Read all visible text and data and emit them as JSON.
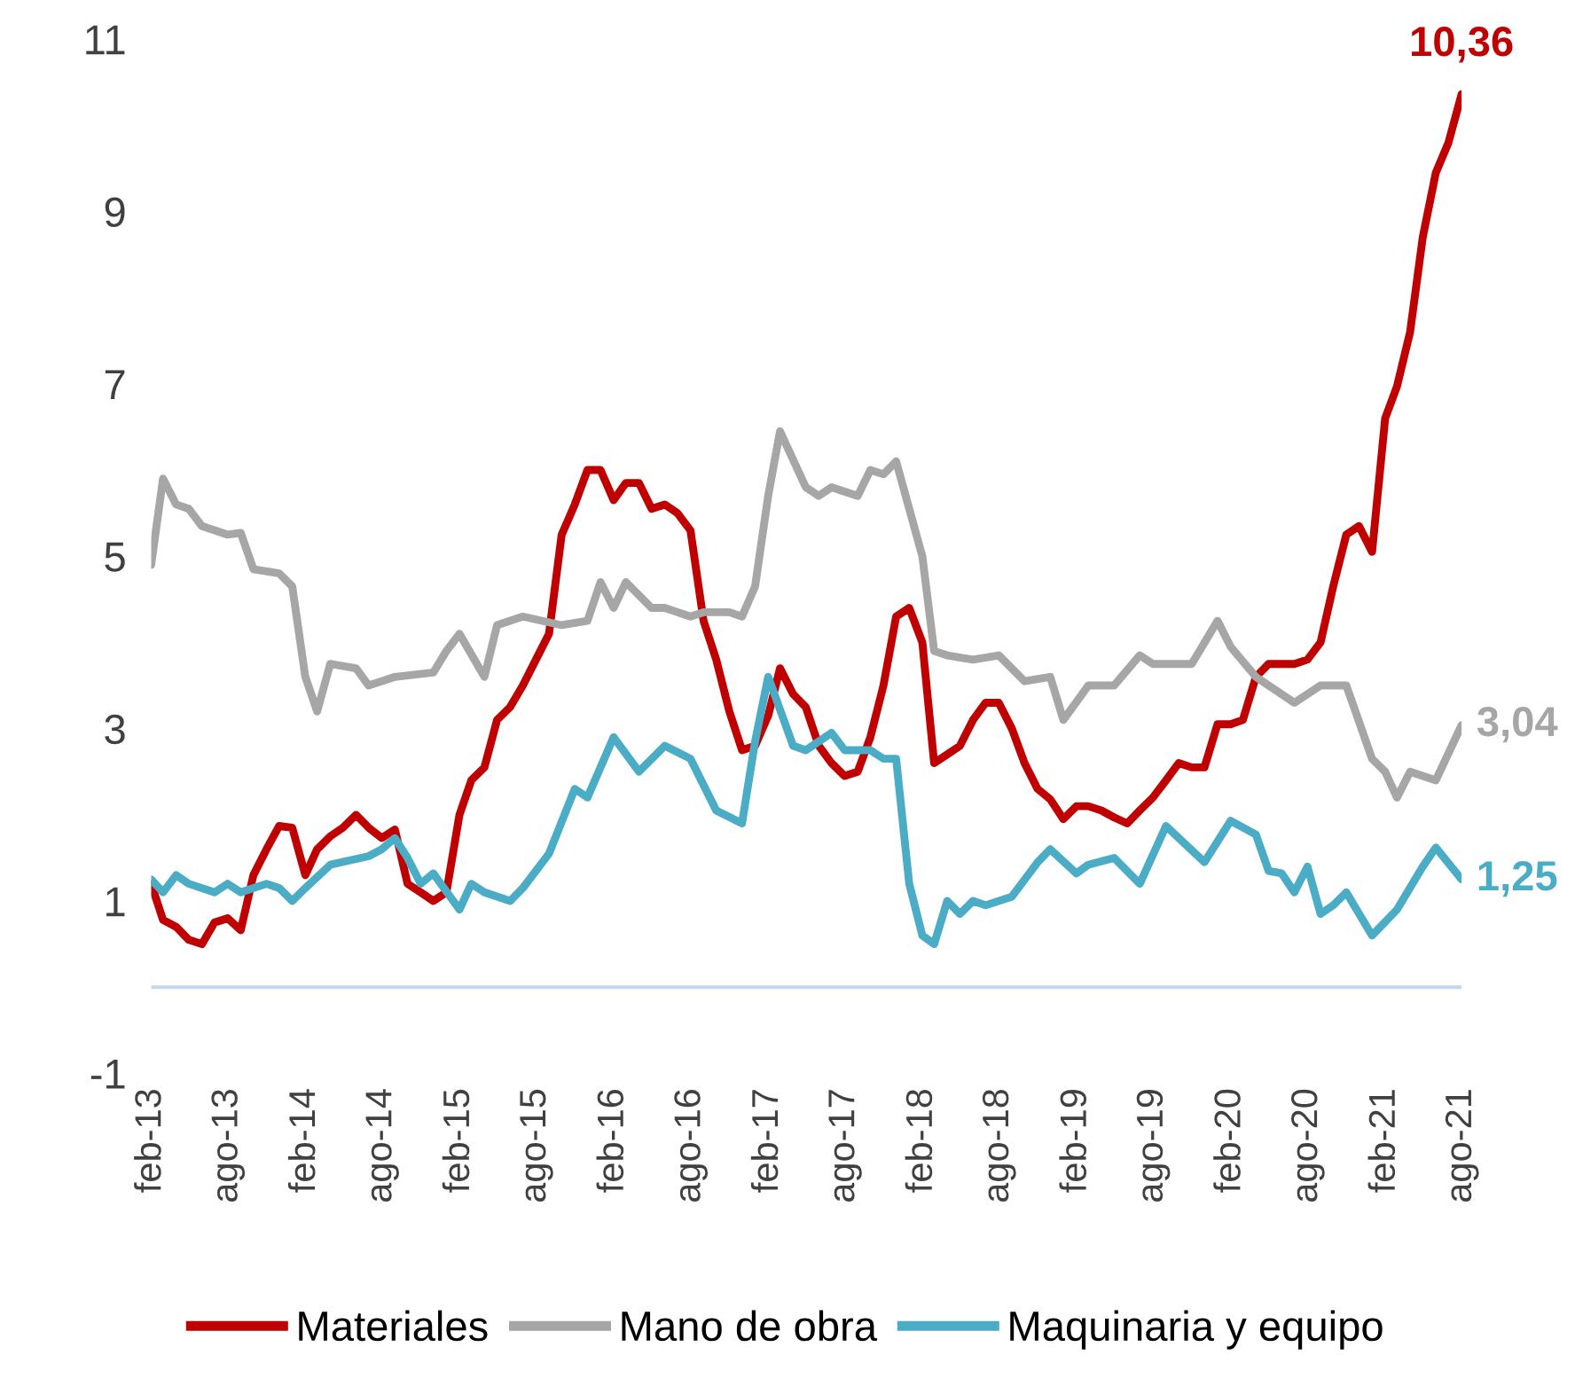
{
  "chart_data": {
    "type": "line",
    "x": [
      "2013-02",
      "2013-03",
      "2013-04",
      "2013-05",
      "2013-06",
      "2013-07",
      "2013-08",
      "2013-09",
      "2013-10",
      "2013-11",
      "2013-12",
      "2014-01",
      "2014-02",
      "2014-03",
      "2014-04",
      "2014-05",
      "2014-06",
      "2014-07",
      "2014-08",
      "2014-09",
      "2014-10",
      "2014-11",
      "2014-12",
      "2015-01",
      "2015-02",
      "2015-03",
      "2015-04",
      "2015-05",
      "2015-06",
      "2015-07",
      "2015-08",
      "2015-09",
      "2015-10",
      "2015-11",
      "2015-12",
      "2016-01",
      "2016-02",
      "2016-03",
      "2016-04",
      "2016-05",
      "2016-06",
      "2016-07",
      "2016-08",
      "2016-09",
      "2016-10",
      "2016-11",
      "2016-12",
      "2017-01",
      "2017-02",
      "2017-03",
      "2017-04",
      "2017-05",
      "2017-06",
      "2017-07",
      "2017-08",
      "2017-09",
      "2017-10",
      "2017-11",
      "2017-12",
      "2018-01",
      "2018-02",
      "2018-03",
      "2018-04",
      "2018-05",
      "2018-06",
      "2018-07",
      "2018-08",
      "2018-09",
      "2018-10",
      "2018-11",
      "2018-12",
      "2019-01",
      "2019-02",
      "2019-03",
      "2019-04",
      "2019-05",
      "2019-06",
      "2019-07",
      "2019-08",
      "2019-09",
      "2019-10",
      "2019-11",
      "2019-12",
      "2020-01",
      "2020-02",
      "2020-03",
      "2020-04",
      "2020-05",
      "2020-06",
      "2020-07",
      "2020-08",
      "2020-09",
      "2020-10",
      "2020-11",
      "2020-12",
      "2021-01",
      "2021-02",
      "2021-03",
      "2021-04",
      "2021-05",
      "2021-06",
      "2021-07",
      "2021-08"
    ],
    "series": [
      {
        "name": "Materiales",
        "color": "#c00000",
        "values": [
          1.2,
          0.78,
          0.7,
          0.55,
          0.5,
          0.75,
          0.8,
          0.66,
          1.3,
          1.6,
          1.87,
          1.85,
          1.3,
          1.6,
          1.75,
          1.85,
          2.0,
          1.85,
          1.73,
          1.83,
          1.2,
          1.1,
          1.0,
          1.1,
          2.0,
          2.4,
          2.55,
          3.1,
          3.25,
          3.5,
          3.8,
          4.1,
          5.25,
          5.6,
          6.0,
          6.0,
          5.65,
          5.85,
          5.85,
          5.55,
          5.6,
          5.5,
          5.3,
          4.25,
          3.8,
          3.2,
          2.75,
          2.8,
          3.15,
          3.7,
          3.4,
          3.25,
          2.8,
          2.6,
          2.45,
          2.5,
          2.9,
          3.5,
          4.3,
          4.4,
          4.0,
          2.6,
          2.7,
          2.8,
          3.1,
          3.3,
          3.3,
          3.0,
          2.6,
          2.3,
          2.18,
          1.95,
          2.1,
          2.1,
          2.05,
          1.97,
          1.9,
          2.05,
          2.2,
          2.4,
          2.6,
          2.55,
          2.55,
          3.05,
          3.05,
          3.1,
          3.6,
          3.75,
          3.75,
          3.75,
          3.8,
          4.0,
          4.65,
          5.25,
          5.35,
          5.05,
          6.6,
          6.97,
          7.6,
          8.7,
          9.45,
          9.8,
          10.36
        ],
        "value_labels": [
          null,
          null,
          null,
          null,
          null,
          null,
          null,
          null,
          null,
          null,
          null,
          null,
          null,
          null,
          null,
          null,
          null,
          null,
          null,
          null,
          null,
          null,
          null,
          null,
          null,
          null,
          null,
          null,
          null,
          null,
          null,
          null,
          null,
          null,
          null,
          null,
          null,
          null,
          null,
          null,
          null,
          null,
          null,
          null,
          null,
          null,
          null,
          null,
          null,
          null,
          null,
          null,
          null,
          null,
          null,
          null,
          null,
          null,
          null,
          null,
          null,
          null,
          null,
          null,
          null,
          null,
          null,
          null,
          null,
          null,
          null,
          null,
          null,
          null,
          null,
          null,
          null,
          null,
          null,
          null,
          null,
          null,
          null,
          null,
          null,
          null,
          null,
          null,
          null,
          null,
          null,
          null,
          null,
          null,
          null,
          null,
          null,
          null,
          null,
          null,
          null,
          null,
          "10,36"
        ]
      },
      {
        "name": "Mano de obra",
        "color": "#a6a6a6",
        "x": [
          "2013-02",
          "2013-03",
          "2013-04",
          "2013-05",
          "2013-06",
          "2013-08",
          "2013-09",
          "2013-10",
          "2013-12",
          "2014-01",
          "2014-02",
          "2014-03",
          "2014-04",
          "2014-06",
          "2014-07",
          "2014-09",
          "2014-12",
          "2015-01",
          "2015-02",
          "2015-04",
          "2015-05",
          "2015-07",
          "2015-10",
          "2015-12",
          "2016-01",
          "2016-02",
          "2016-03",
          "2016-05",
          "2016-06",
          "2016-08",
          "2016-09",
          "2016-11",
          "2016-12",
          "2017-01",
          "2017-02",
          "2017-03",
          "2017-05",
          "2017-06",
          "2017-07",
          "2017-09",
          "2017-10",
          "2017-11",
          "2017-12",
          "2018-02",
          "2018-03",
          "2018-04",
          "2018-06",
          "2018-08",
          "2018-10",
          "2018-12",
          "2019-01",
          "2019-03",
          "2019-05",
          "2019-07",
          "2019-08",
          "2019-11",
          "2020-01",
          "2020-02",
          "2020-04",
          "2020-05",
          "2020-07",
          "2020-09",
          "2020-11",
          "2021-01",
          "2021-02",
          "2021-03",
          "2021-04",
          "2021-06",
          "2021-08"
        ],
        "values": [
          4.9,
          5.9,
          5.6,
          5.55,
          5.35,
          5.25,
          5.27,
          4.85,
          4.8,
          4.65,
          3.6,
          3.2,
          3.75,
          3.7,
          3.5,
          3.6,
          3.65,
          3.9,
          4.1,
          3.6,
          4.2,
          4.3,
          4.2,
          4.25,
          4.7,
          4.4,
          4.7,
          4.4,
          4.4,
          4.3,
          4.35,
          4.35,
          4.3,
          4.65,
          5.7,
          6.45,
          5.8,
          5.7,
          5.8,
          5.7,
          6.0,
          5.95,
          6.1,
          5.0,
          3.9,
          3.85,
          3.8,
          3.85,
          3.55,
          3.6,
          3.1,
          3.5,
          3.5,
          3.85,
          3.75,
          3.75,
          4.25,
          3.95,
          3.6,
          3.5,
          3.3,
          3.5,
          3.5,
          2.65,
          2.5,
          2.2,
          2.5,
          2.4,
          3.04
        ],
        "value_labels": [
          null,
          null,
          null,
          null,
          null,
          null,
          null,
          null,
          null,
          null,
          null,
          null,
          null,
          null,
          null,
          null,
          null,
          null,
          null,
          null,
          null,
          null,
          null,
          null,
          null,
          null,
          null,
          null,
          null,
          null,
          null,
          null,
          null,
          null,
          null,
          null,
          null,
          null,
          null,
          null,
          null,
          null,
          null,
          null,
          null,
          null,
          null,
          null,
          null,
          null,
          null,
          null,
          null,
          null,
          null,
          null,
          null,
          null,
          null,
          null,
          null,
          null,
          null,
          null,
          null,
          null,
          null,
          null,
          "3,04"
        ]
      },
      {
        "name": "Maquinaria y equipo",
        "color": "#4bacc6",
        "x": [
          "2013-02",
          "2013-03",
          "2013-04",
          "2013-05",
          "2013-07",
          "2013-08",
          "2013-09",
          "2013-11",
          "2013-12",
          "2014-01",
          "2014-02",
          "2014-04",
          "2014-07",
          "2014-08",
          "2014-09",
          "2014-10",
          "2014-11",
          "2014-12",
          "2015-02",
          "2015-03",
          "2015-04",
          "2015-06",
          "2015-07",
          "2015-09",
          "2015-11",
          "2015-12",
          "2016-02",
          "2016-04",
          "2016-06",
          "2016-08",
          "2016-10",
          "2016-12",
          "2017-01",
          "2017-02",
          "2017-04",
          "2017-05",
          "2017-07",
          "2017-08",
          "2017-10",
          "2017-11",
          "2017-12",
          "2018-01",
          "2018-02",
          "2018-03",
          "2018-04",
          "2018-05",
          "2018-06",
          "2018-07",
          "2018-09",
          "2018-11",
          "2018-12",
          "2019-02",
          "2019-03",
          "2019-05",
          "2019-07",
          "2019-09",
          "2019-12",
          "2020-02",
          "2020-04",
          "2020-05",
          "2020-06",
          "2020-07",
          "2020-08",
          "2020-09",
          "2020-10",
          "2020-11",
          "2021-01",
          "2021-03",
          "2021-05",
          "2021-06",
          "2021-08"
        ],
        "values": [
          1.25,
          1.1,
          1.3,
          1.2,
          1.1,
          1.2,
          1.1,
          1.2,
          1.15,
          1.0,
          1.15,
          1.42,
          1.52,
          1.6,
          1.73,
          1.5,
          1.2,
          1.32,
          0.9,
          1.2,
          1.1,
          1.0,
          1.15,
          1.55,
          2.3,
          2.2,
          2.9,
          2.5,
          2.8,
          2.65,
          2.05,
          1.9,
          2.85,
          3.6,
          2.8,
          2.75,
          2.95,
          2.75,
          2.75,
          2.65,
          2.65,
          1.2,
          0.6,
          0.5,
          1.0,
          0.85,
          1.0,
          0.95,
          1.05,
          1.45,
          1.6,
          1.32,
          1.42,
          1.5,
          1.2,
          1.87,
          1.45,
          1.93,
          1.77,
          1.35,
          1.32,
          1.1,
          1.4,
          0.85,
          0.95,
          1.1,
          0.6,
          0.9,
          1.4,
          1.62,
          1.25
        ],
        "value_labels": [
          null,
          null,
          null,
          null,
          null,
          null,
          null,
          null,
          null,
          null,
          null,
          null,
          null,
          null,
          null,
          null,
          null,
          null,
          null,
          null,
          null,
          null,
          null,
          null,
          null,
          null,
          null,
          null,
          null,
          null,
          null,
          null,
          null,
          null,
          null,
          null,
          null,
          null,
          null,
          null,
          null,
          null,
          null,
          null,
          null,
          null,
          null,
          null,
          null,
          null,
          null,
          null,
          null,
          null,
          null,
          null,
          null,
          null,
          null,
          null,
          null,
          null,
          null,
          null,
          null,
          null,
          null,
          null,
          null,
          null,
          "1,25"
        ]
      }
    ],
    "xlim": [
      "2013-02",
      "2021-08"
    ],
    "xticks": [
      {
        "value": "2013-02",
        "label": "feb-13"
      },
      {
        "value": "2013-08",
        "label": "ago-13"
      },
      {
        "value": "2014-02",
        "label": "feb-14"
      },
      {
        "value": "2014-08",
        "label": "ago-14"
      },
      {
        "value": "2015-02",
        "label": "feb-15"
      },
      {
        "value": "2015-08",
        "label": "ago-15"
      },
      {
        "value": "2016-02",
        "label": "feb-16"
      },
      {
        "value": "2016-08",
        "label": "ago-16"
      },
      {
        "value": "2017-02",
        "label": "feb-17"
      },
      {
        "value": "2017-08",
        "label": "ago-17"
      },
      {
        "value": "2018-02",
        "label": "feb-18"
      },
      {
        "value": "2018-08",
        "label": "ago-18"
      },
      {
        "value": "2019-02",
        "label": "feb-19"
      },
      {
        "value": "2019-08",
        "label": "ago-19"
      },
      {
        "value": "2020-02",
        "label": "feb-20"
      },
      {
        "value": "2020-08",
        "label": "ago-20"
      },
      {
        "value": "2021-02",
        "label": "feb-21"
      },
      {
        "value": "2021-08",
        "label": "ago-21"
      }
    ],
    "ylim": [
      -1,
      11
    ],
    "yticks": [
      -1,
      1,
      3,
      5,
      7,
      9,
      11
    ],
    "ref_lines": [
      {
        "axis": "y",
        "value": 0,
        "color": "#c5d5f5"
      }
    ],
    "grid": false,
    "legend": "bottom",
    "marker": "none",
    "line_style": "solid"
  }
}
